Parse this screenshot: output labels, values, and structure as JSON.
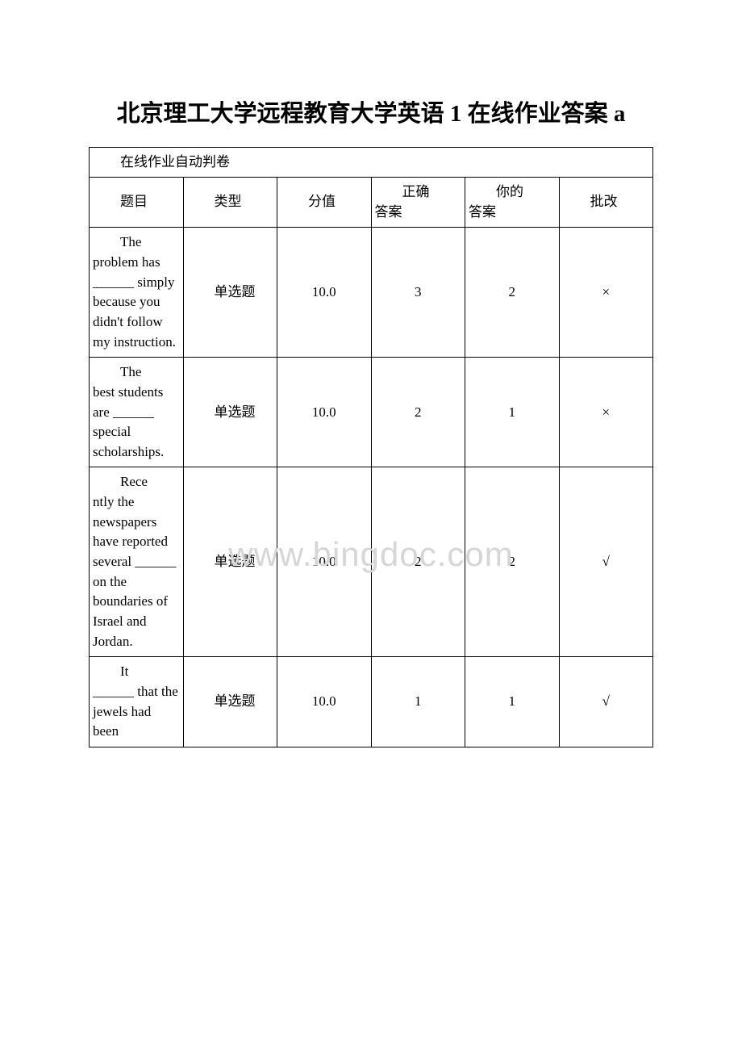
{
  "title": "北京理工大学远程教育大学英语 1 在线作业答案 a",
  "watermark": "www.bingdoc.com",
  "table": {
    "caption": "在线作业自动判卷",
    "headers": {
      "question": "题目",
      "type": "类型",
      "score": "分值",
      "correct_line1": "正确",
      "correct_line2": "答案",
      "your_line1": "你的",
      "your_line2": "答案",
      "mark": "批改"
    },
    "rows": [
      {
        "question_first": "The",
        "question_rest": "problem has ______ simply because you didn't follow my instruction.",
        "type": "单选题",
        "score": "10.0",
        "correct": "3",
        "your": "2",
        "mark": "×"
      },
      {
        "question_first": "The",
        "question_rest": "best students are ______ special scholarships.",
        "type": "单选题",
        "score": "10.0",
        "correct": "2",
        "your": "1",
        "mark": "×"
      },
      {
        "question_first": "Rece",
        "question_rest": "ntly the newspapers have reported several ______ on the boundaries of Israel and Jordan.",
        "type": "单选题",
        "score": "10.0",
        "correct": "2",
        "your": "2",
        "mark": "√"
      },
      {
        "question_first": "It",
        "question_rest": "______ that the jewels had been",
        "type": "单选题",
        "score": "10.0",
        "correct": "1",
        "your": "1",
        "mark": "√"
      }
    ]
  }
}
